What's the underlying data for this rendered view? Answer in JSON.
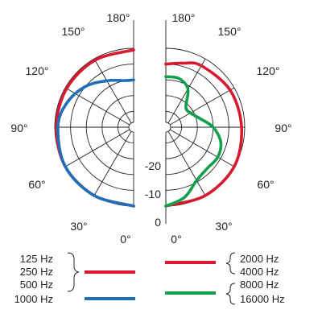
{
  "chart_data": {
    "type": "polar",
    "unit": "dB",
    "r_range": [
      -25,
      0
    ],
    "angle_labels": [
      "0°",
      "30°",
      "60°",
      "90°",
      "120°",
      "150°",
      "180°"
    ],
    "left_angle_labels": [
      "0°",
      "30°",
      "60°",
      "90°",
      "120°",
      "150°",
      "180°"
    ],
    "right_angle_labels": [
      "0°",
      "30°",
      "60°",
      "90°",
      "120°",
      "150°",
      "180°"
    ],
    "db_labels": [
      "0",
      "-10",
      "-20"
    ],
    "grid": true,
    "series": [
      {
        "name": "125 Hz / 250 Hz / 500 Hz",
        "side": "left",
        "color": "#d8192e",
        "points": [
          [
            0,
            0
          ],
          [
            30,
            0
          ],
          [
            60,
            0
          ],
          [
            90,
            -0.5
          ],
          [
            120,
            -0.5
          ],
          [
            150,
            -0.5
          ],
          [
            180,
            -0.5
          ]
        ]
      },
      {
        "name": "1000 Hz",
        "side": "left",
        "color": "#1f6fb8",
        "points": [
          [
            0,
            0
          ],
          [
            30,
            0
          ],
          [
            60,
            0
          ],
          [
            90,
            -1
          ],
          [
            110,
            -2.5
          ],
          [
            130,
            -5
          ],
          [
            150,
            -8
          ],
          [
            170,
            -10
          ],
          [
            180,
            -10
          ]
        ]
      },
      {
        "name": "2000 Hz / 4000 Hz",
        "side": "right",
        "color": "#d8192e",
        "points": [
          [
            0,
            0
          ],
          [
            30,
            0
          ],
          [
            60,
            0
          ],
          [
            90,
            -1
          ],
          [
            120,
            -1.5
          ],
          [
            150,
            -2.5
          ],
          [
            165,
            -4
          ],
          [
            180,
            -5
          ]
        ]
      },
      {
        "name": "8000 Hz / 16000 Hz",
        "side": "right",
        "color": "#12a04a",
        "points": [
          [
            0,
            0
          ],
          [
            15,
            -2
          ],
          [
            30,
            -5.5
          ],
          [
            45,
            -6.5
          ],
          [
            60,
            -6
          ],
          [
            75,
            -7
          ],
          [
            90,
            -10
          ],
          [
            105,
            -14
          ],
          [
            120,
            -16
          ],
          [
            135,
            -16
          ],
          [
            150,
            -11
          ],
          [
            165,
            -9
          ],
          [
            180,
            -9
          ]
        ]
      }
    ],
    "legend": [
      {
        "group": [
          "125 Hz",
          "250 Hz",
          "500 Hz"
        ],
        "color": "#d8192e",
        "side": "left"
      },
      {
        "group": [
          "1000 Hz"
        ],
        "color": "#1f6fb8",
        "side": "left"
      },
      {
        "group": [
          "2000 Hz",
          "4000 Hz"
        ],
        "color": "#d8192e",
        "side": "right"
      },
      {
        "group": [
          "8000 Hz",
          "16000 Hz"
        ],
        "color": "#12a04a",
        "side": "right"
      }
    ]
  }
}
